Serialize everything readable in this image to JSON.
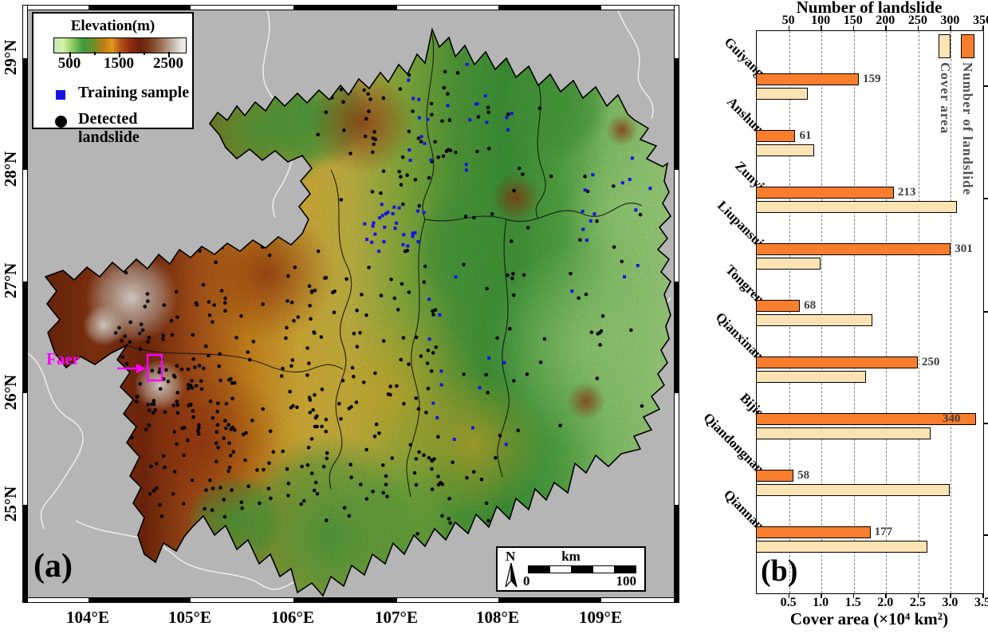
{
  "map": {
    "panel_label": "(a)",
    "x_ticks": [
      "104°E",
      "105°E",
      "106°E",
      "107°E",
      "108°E",
      "109°E"
    ],
    "y_ticks": [
      "29°N",
      "28°N",
      "27°N",
      "26°N",
      "25°N"
    ],
    "legend": {
      "colorbar_title": "Elevation(m)",
      "colorbar_ticks": [
        "500",
        "1500",
        "2500"
      ],
      "training_sample_label": "Training sample",
      "training_sample_color": "#1414e6",
      "detected_landslide_label": "Detected landslide",
      "detected_landslide_color": "#000000"
    },
    "annotation": {
      "label": "Faer",
      "color": "#ff00ff"
    },
    "scalebar": {
      "north_label": "N",
      "unit_label": "km",
      "start": "0",
      "end": "100"
    }
  },
  "chart": {
    "panel_label": "(b)",
    "top_axis_title": "Number of landslide",
    "top_axis_ticks": [
      "50",
      "100",
      "150",
      "200",
      "250",
      "300",
      "350"
    ],
    "bottom_axis_title": "Cover area (×10⁴ km²)",
    "bottom_axis_ticks": [
      "0.5",
      "1.0",
      "1.5",
      "2.0",
      "2.5",
      "3.0",
      "3.5"
    ],
    "legend": [
      {
        "label": "Cover area",
        "color": "#fbe3b4"
      },
      {
        "label": "Number of landslide",
        "color": "#f87d2c"
      }
    ]
  },
  "chart_data": {
    "type": "bar",
    "orientation": "horizontal",
    "categories": [
      "Guiyang",
      "Anshun",
      "Zunyi",
      "Liupansui",
      "Tongren",
      "Qianxinan",
      "Bijie",
      "Qiandongnan",
      "Qiannan"
    ],
    "series": [
      {
        "name": "Number of landslide",
        "axis": "top",
        "color": "#f87d2c",
        "values": [
          159,
          61,
          213,
          301,
          68,
          250,
          340,
          58,
          177
        ]
      },
      {
        "name": "Cover area",
        "axis": "bottom",
        "color": "#fbe3b4",
        "values": [
          0.8,
          0.9,
          3.1,
          1.0,
          1.8,
          1.7,
          2.7,
          3.0,
          2.65
        ]
      }
    ],
    "top_axis": {
      "label": "Number of landslide",
      "range": [
        0,
        350
      ]
    },
    "bottom_axis": {
      "label": "Cover area (×10⁴ km²)",
      "range": [
        0,
        3.5
      ]
    },
    "grid": "vertical-dashed",
    "value_labels_shown_for": "Number of landslide"
  }
}
